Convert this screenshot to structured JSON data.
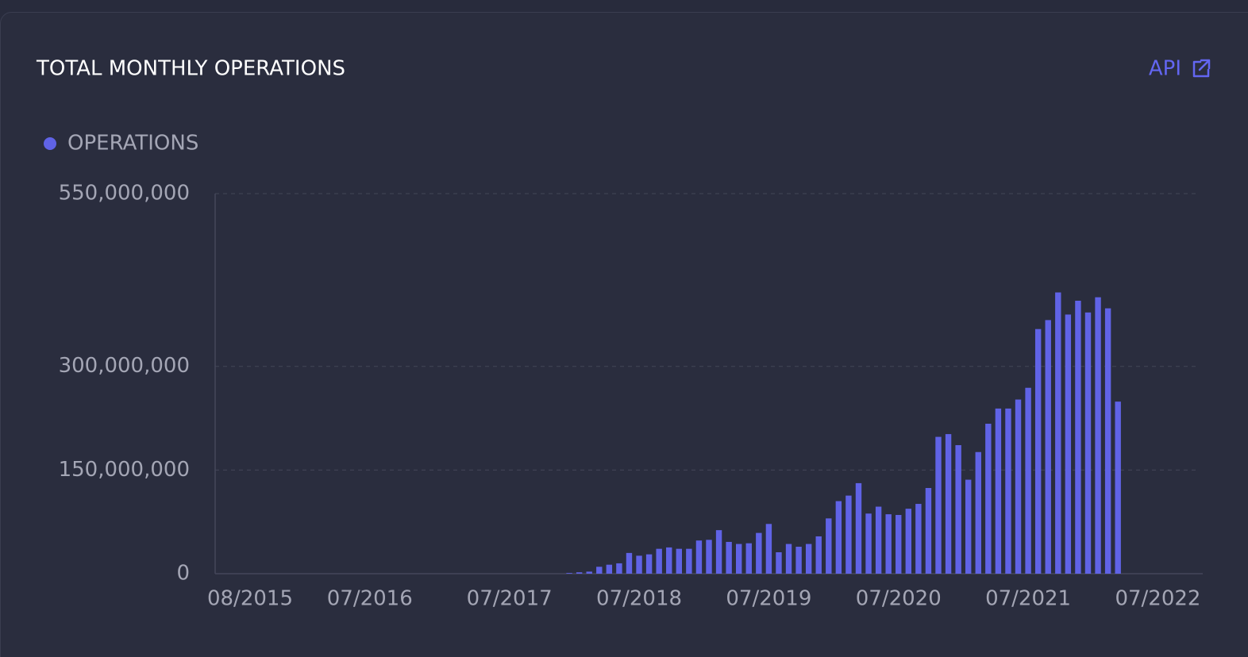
{
  "chart_data": {
    "type": "bar",
    "title": "TOTAL MONTHLY OPERATIONS",
    "link": "API",
    "categories": [
      null,
      null,
      null,
      "08/2015",
      null,
      null,
      null,
      null,
      null,
      null,
      null,
      null,
      null,
      null,
      null,
      "07/2016",
      null,
      null,
      null,
      null,
      null,
      null,
      null,
      null,
      null,
      null,
      null,
      null,
      null,
      "07/2017",
      null,
      null,
      null,
      null,
      null,
      null,
      null,
      null,
      null,
      null,
      null,
      null,
      "07/2018",
      null,
      null,
      null,
      null,
      null,
      null,
      null,
      null,
      null,
      null,
      null,
      null,
      "07/2019",
      null,
      null,
      null,
      null,
      null,
      null,
      null,
      null,
      null,
      null,
      null,
      null,
      "07/2020",
      null,
      null,
      null,
      null,
      null,
      null,
      null,
      null,
      null,
      null,
      null,
      null,
      "07/2021",
      null,
      null,
      null,
      null,
      null,
      null,
      null,
      null,
      null,
      null,
      null,
      null,
      "07/2022",
      null,
      null,
      null,
      null
    ],
    "series": [
      {
        "name": "OPERATIONS",
        "color": "#6063e6",
        "values": [
          null,
          null,
          null,
          null,
          null,
          null,
          null,
          null,
          null,
          null,
          null,
          null,
          null,
          null,
          null,
          null,
          null,
          null,
          null,
          null,
          null,
          null,
          null,
          null,
          null,
          null,
          null,
          null,
          null,
          null,
          null,
          null,
          null,
          null,
          null,
          1000000,
          2000000,
          3000000,
          10000000,
          13000000,
          15000000,
          30000000,
          26000000,
          28000000,
          36000000,
          38000000,
          36000000,
          36000000,
          48000000,
          49000000,
          63000000,
          46000000,
          43000000,
          44000000,
          59000000,
          72000000,
          31000000,
          43000000,
          39000000,
          43000000,
          54000000,
          80000000,
          105000000,
          113000000,
          131000000,
          87000000,
          97000000,
          86000000,
          85000000,
          94000000,
          101000000,
          124000000,
          198000000,
          202000000,
          186000000,
          136000000,
          176000000,
          217000000,
          239000000,
          239000000,
          252000000,
          269000000,
          354000000,
          367000000,
          407000000,
          375000000,
          395000000,
          378000000,
          400000000,
          384000000,
          249000000,
          null,
          null,
          null,
          null,
          null,
          null,
          null,
          null
        ]
      }
    ],
    "ylim": [
      0,
      550000000
    ],
    "yticks": [
      0,
      {
        "value": 150000000,
        "label": "150,000,000"
      },
      {
        "value": 300000000,
        "label": "300,000,000"
      },
      {
        "value": 550000000,
        "label": "550,000,000"
      }
    ],
    "grid": true
  }
}
